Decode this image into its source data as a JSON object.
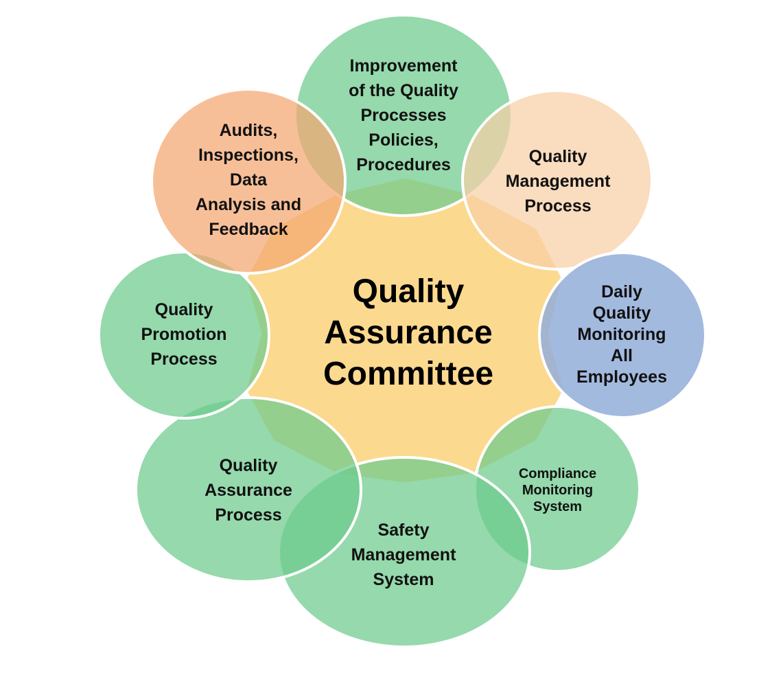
{
  "center": {
    "title": "Quality\nAssurance\nCommittee",
    "color": "#FBD98F"
  },
  "satellites": [
    {
      "id": "improvement",
      "label": "Improvement\nof the Quality\nProcesses\nPolicies,\nProcedures",
      "color": "#6CCB8C"
    },
    {
      "id": "quality-management",
      "label": "Quality\nManagement\nProcess",
      "color": "#F8CFA6"
    },
    {
      "id": "daily-monitoring",
      "label": "Daily\nQuality\nMonitoring\nAll\nEmployees",
      "color": "#93AED9"
    },
    {
      "id": "compliance",
      "label": "Compliance\nMonitoring\nSystem",
      "color": "#6CCB8C"
    },
    {
      "id": "safety",
      "label": "Safety\nManagement\nSystem",
      "color": "#6CCB8C"
    },
    {
      "id": "quality-assurance",
      "label": "Quality\nAssurance\nProcess",
      "color": "#6CCB8C"
    },
    {
      "id": "quality-promotion",
      "label": "Quality\nPromotion\nProcess",
      "color": "#6CCB8C"
    },
    {
      "id": "audits",
      "label": "Audits,\nInspections,\nData\nAnalysis and\nFeedback",
      "color": "#F4A670"
    }
  ]
}
